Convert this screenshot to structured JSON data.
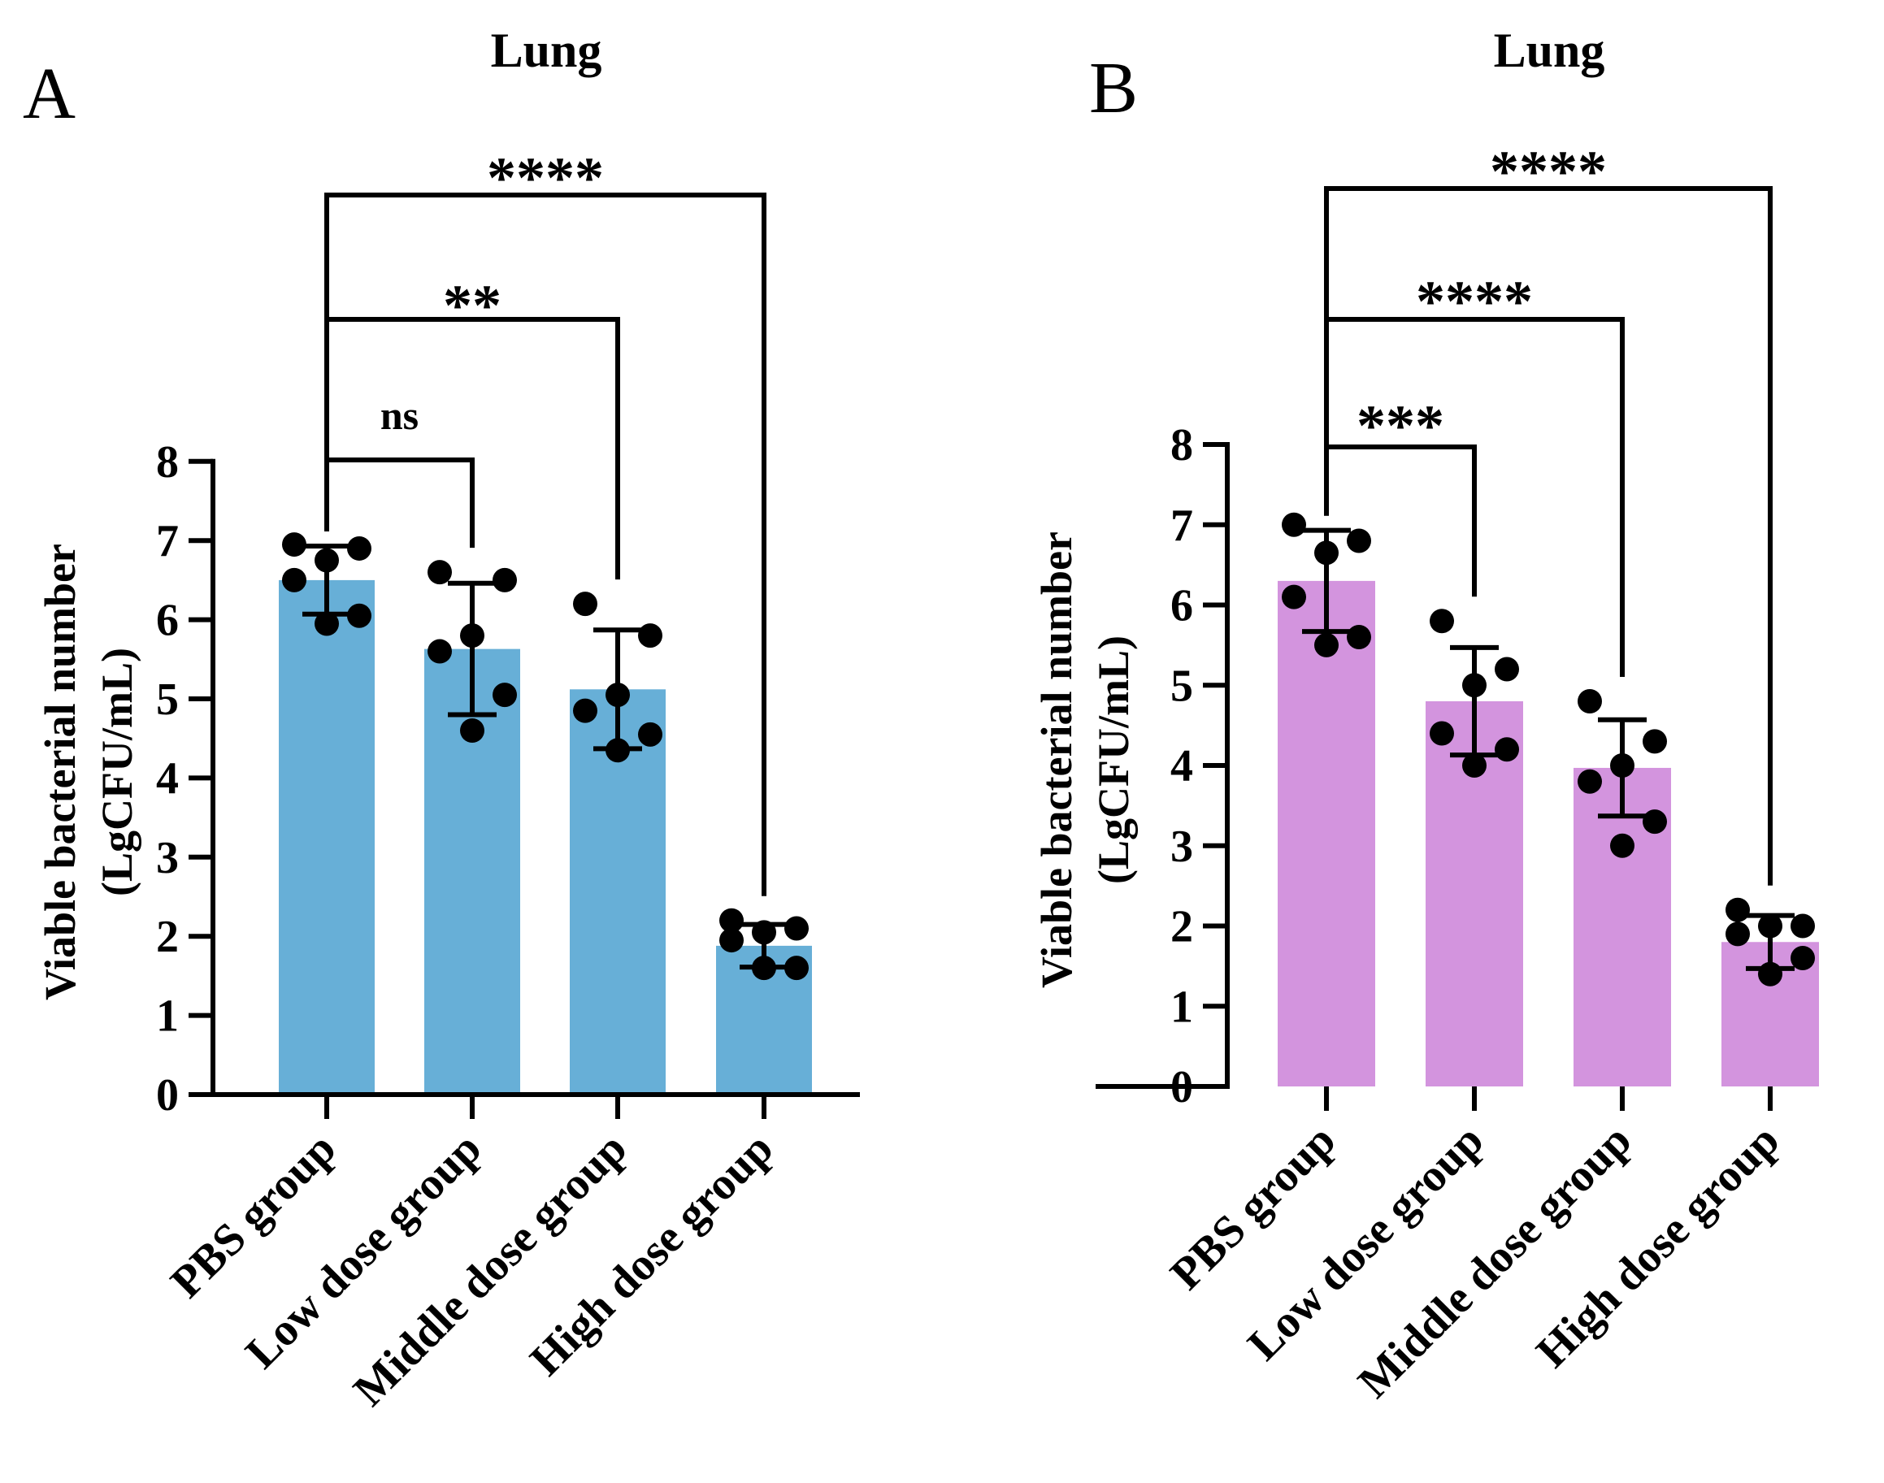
{
  "chart_data": [
    {
      "type": "bar",
      "panel": "A",
      "title": "Lung",
      "ylabel": "Viable bacterial number",
      "ylabel_unit": "(LgCFU/mL)",
      "ylim": [
        0,
        8
      ],
      "yticks": [
        "0",
        "1",
        "2",
        "3",
        "4",
        "5",
        "6",
        "7",
        "8"
      ],
      "categories": [
        "PBS group",
        "Low dose group",
        "Middle dose group",
        "High dose group"
      ],
      "bar_color": "#67afd7",
      "values": [
        6.5,
        5.63,
        5.12,
        1.88
      ],
      "error": [
        0.43,
        0.83,
        0.75,
        0.27
      ],
      "points": [
        [
          6.95,
          6.9,
          6.75,
          6.5,
          6.05,
          5.95
        ],
        [
          6.6,
          6.5,
          5.8,
          5.6,
          5.05,
          4.6
        ],
        [
          6.2,
          5.8,
          5.05,
          4.85,
          4.55,
          4.35
        ],
        [
          2.2,
          2.1,
          2.05,
          1.95,
          1.6,
          1.6
        ]
      ],
      "comparisons": [
        {
          "from": 0,
          "to": 1,
          "label": "ns"
        },
        {
          "from": 0,
          "to": 2,
          "label": "**"
        },
        {
          "from": 0,
          "to": 3,
          "label": "****"
        }
      ]
    },
    {
      "type": "bar",
      "panel": "B",
      "title": "Lung",
      "ylabel": "Viable bacterial number",
      "ylabel_unit": "(LgCFU/mL)",
      "ylim": [
        0,
        8
      ],
      "yticks": [
        "0",
        "1",
        "2",
        "3",
        "4",
        "5",
        "6",
        "7",
        "8"
      ],
      "categories": [
        "PBS group",
        "Low dose group",
        "Middle dose group",
        "High dose group"
      ],
      "bar_color": "#d394de",
      "values": [
        6.3,
        4.8,
        3.97,
        1.8
      ],
      "error": [
        0.63,
        0.67,
        0.6,
        0.33
      ],
      "points": [
        [
          7.0,
          6.8,
          6.65,
          6.1,
          5.6,
          5.5
        ],
        [
          5.8,
          5.2,
          5.0,
          4.4,
          4.2,
          4.0
        ],
        [
          4.8,
          4.3,
          4.0,
          3.8,
          3.3,
          3.0
        ],
        [
          2.2,
          2.0,
          2.0,
          1.9,
          1.6,
          1.4
        ]
      ],
      "comparisons": [
        {
          "from": 0,
          "to": 1,
          "label": "***"
        },
        {
          "from": 0,
          "to": 2,
          "label": "****"
        },
        {
          "from": 0,
          "to": 3,
          "label": "****"
        }
      ]
    }
  ]
}
